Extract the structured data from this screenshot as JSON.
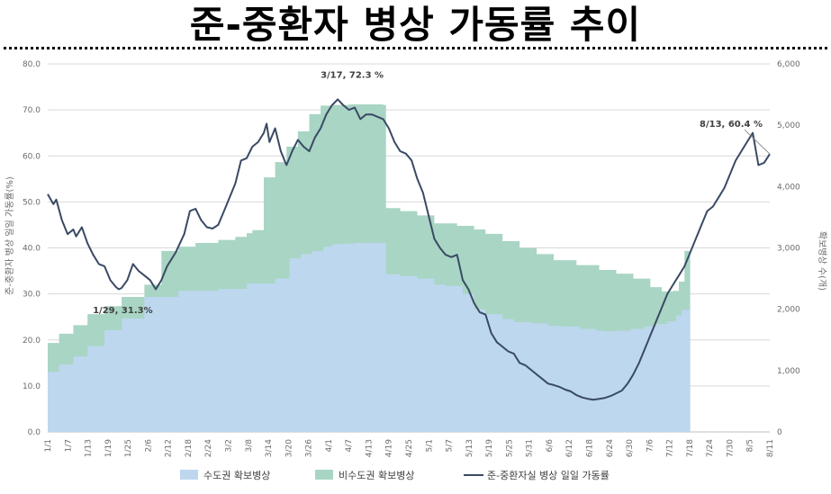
{
  "title": "준-중환자 병상 가동률 추이",
  "chart_data": {
    "type": "area+line",
    "title": "준-중환자 병상 가동률 추이",
    "y_left": {
      "label": "준-중환자 병상 일일 가동률(%)",
      "range": [
        0,
        80
      ],
      "ticks": [
        "0.0",
        "10.0",
        "20.0",
        "30.0",
        "40.0",
        "50.0",
        "60.0",
        "70.0",
        "80.0"
      ]
    },
    "y_right": {
      "label": "확보병상 수(개)",
      "range": [
        0,
        6000
      ],
      "ticks": [
        "0",
        "1,000",
        "2,000",
        "3,000",
        "4,000",
        "5,000",
        "6,000"
      ]
    },
    "x_ticks": [
      "1/1",
      "1/7",
      "1/13",
      "1/19",
      "1/25",
      "2/6",
      "2/12",
      "2/18",
      "2/24",
      "3/2",
      "3/8",
      "3/14",
      "3/20",
      "3/26",
      "4/1",
      "4/7",
      "4/13",
      "4/19",
      "4/25",
      "5/1",
      "5/7",
      "5/13",
      "5/19",
      "5/25",
      "5/31",
      "6/6",
      "6/12",
      "6/18",
      "6/24",
      "6/30",
      "7/6",
      "7/12",
      "7/18",
      "7/24",
      "7/30",
      "8/5",
      "8/11"
    ],
    "series": [
      {
        "name": "수도권 확보병상",
        "kind": "area",
        "axis": "right",
        "color": "#bdd7ee",
        "points": [
          [
            0,
            980
          ],
          [
            4,
            1100
          ],
          [
            9,
            1230
          ],
          [
            14,
            1400
          ],
          [
            20,
            1660
          ],
          [
            26,
            1850
          ],
          [
            34,
            2200
          ],
          [
            46,
            2300
          ],
          [
            60,
            2330
          ],
          [
            70,
            2420
          ],
          [
            80,
            2500
          ],
          [
            85,
            2830
          ],
          [
            89,
            2900
          ],
          [
            93,
            2950
          ],
          [
            97,
            3020
          ],
          [
            100,
            3060
          ],
          [
            104,
            3070
          ],
          [
            108,
            3080
          ],
          [
            113,
            3080
          ],
          [
            118,
            3080
          ],
          [
            119,
            2570
          ],
          [
            124,
            2540
          ],
          [
            130,
            2500
          ],
          [
            136,
            2400
          ],
          [
            140,
            2380
          ],
          [
            146,
            2250
          ],
          [
            150,
            2000
          ],
          [
            154,
            1920
          ],
          [
            160,
            1840
          ],
          [
            164,
            1790
          ],
          [
            170,
            1770
          ],
          [
            176,
            1730
          ],
          [
            181,
            1720
          ],
          [
            187,
            1680
          ],
          [
            193,
            1650
          ],
          [
            196,
            1640
          ],
          [
            200,
            1650
          ],
          [
            205,
            1680
          ],
          [
            210,
            1720
          ],
          [
            214,
            1760
          ],
          [
            218,
            1800
          ],
          [
            221,
            1900
          ],
          [
            223,
            1990
          ],
          [
            226,
            2050
          ]
        ]
      },
      {
        "name": "비수도권 확보병상",
        "kind": "area",
        "axis": "right",
        "color": "#a9d5c4",
        "points": [
          [
            0,
            1450
          ],
          [
            4,
            1600
          ],
          [
            9,
            1740
          ],
          [
            14,
            1920
          ],
          [
            20,
            2050
          ],
          [
            26,
            2200
          ],
          [
            34,
            2400
          ],
          [
            40,
            2950
          ],
          [
            46,
            3020
          ],
          [
            52,
            3080
          ],
          [
            60,
            3130
          ],
          [
            66,
            3180
          ],
          [
            70,
            3240
          ],
          [
            72,
            3290
          ],
          [
            76,
            4150
          ],
          [
            80,
            4400
          ],
          [
            84,
            4650
          ],
          [
            88,
            4900
          ],
          [
            92,
            5180
          ],
          [
            96,
            5320
          ],
          [
            100,
            5330
          ],
          [
            106,
            5340
          ],
          [
            113,
            5340
          ],
          [
            118,
            5330
          ],
          [
            119,
            3650
          ],
          [
            124,
            3600
          ],
          [
            130,
            3530
          ],
          [
            136,
            3400
          ],
          [
            144,
            3360
          ],
          [
            150,
            3300
          ],
          [
            154,
            3230
          ],
          [
            160,
            3110
          ],
          [
            166,
            3000
          ],
          [
            172,
            2900
          ],
          [
            178,
            2800
          ],
          [
            186,
            2720
          ],
          [
            194,
            2640
          ],
          [
            200,
            2580
          ],
          [
            206,
            2500
          ],
          [
            212,
            2360
          ],
          [
            216,
            2290
          ],
          [
            220,
            2300
          ],
          [
            222,
            2450
          ],
          [
            224,
            2950
          ],
          [
            226,
            3060
          ]
        ]
      },
      {
        "name": "준-중환자실 병상 일일 가동률",
        "kind": "line",
        "axis": "left",
        "color": "#3a4a64",
        "points": [
          [
            0,
            51.7
          ],
          [
            2,
            49.5
          ],
          [
            3,
            50.5
          ],
          [
            5,
            46
          ],
          [
            7,
            43
          ],
          [
            9,
            44
          ],
          [
            10,
            42.5
          ],
          [
            12,
            44.5
          ],
          [
            14,
            41
          ],
          [
            16,
            38.5
          ],
          [
            18,
            36.5
          ],
          [
            20,
            36
          ],
          [
            22,
            33
          ],
          [
            24,
            31.5
          ],
          [
            25,
            31
          ],
          [
            26,
            31.3
          ],
          [
            28,
            33
          ],
          [
            30,
            36.5
          ],
          [
            32,
            35
          ],
          [
            34,
            34
          ],
          [
            36,
            33
          ],
          [
            38,
            31
          ],
          [
            40,
            33
          ],
          [
            42,
            36
          ],
          [
            45,
            39
          ],
          [
            48,
            43
          ],
          [
            50,
            48
          ],
          [
            52,
            48.5
          ],
          [
            54,
            46
          ],
          [
            56,
            44.5
          ],
          [
            58,
            44.2
          ],
          [
            60,
            45
          ],
          [
            62,
            48
          ],
          [
            64,
            51
          ],
          [
            66,
            54
          ],
          [
            68,
            59
          ],
          [
            70,
            59.5
          ],
          [
            72,
            62
          ],
          [
            74,
            63
          ],
          [
            76,
            65
          ],
          [
            77,
            67
          ],
          [
            78,
            63
          ],
          [
            80,
            66
          ],
          [
            82,
            61
          ],
          [
            84,
            58
          ],
          [
            86,
            61
          ],
          [
            88,
            63.5
          ],
          [
            90,
            62
          ],
          [
            92,
            61
          ],
          [
            94,
            64
          ],
          [
            96,
            66
          ],
          [
            98,
            69
          ],
          [
            100,
            71
          ],
          [
            102,
            72.3
          ],
          [
            104,
            71
          ],
          [
            106,
            70
          ],
          [
            108,
            70.5
          ],
          [
            110,
            68
          ],
          [
            112,
            69
          ],
          [
            114,
            69
          ],
          [
            116,
            68.5
          ],
          [
            118,
            68
          ],
          [
            120,
            66
          ],
          [
            122,
            63
          ],
          [
            124,
            61
          ],
          [
            126,
            60.5
          ],
          [
            128,
            59
          ],
          [
            130,
            55
          ],
          [
            132,
            52
          ],
          [
            134,
            47
          ],
          [
            136,
            42
          ],
          [
            138,
            40
          ],
          [
            140,
            38.5
          ],
          [
            142,
            38
          ],
          [
            144,
            38.5
          ],
          [
            146,
            33
          ],
          [
            148,
            31
          ],
          [
            150,
            28
          ],
          [
            152,
            26
          ],
          [
            154,
            25.5
          ],
          [
            156,
            21.5
          ],
          [
            158,
            19.5
          ],
          [
            160,
            18.5
          ],
          [
            162,
            17.5
          ],
          [
            164,
            17
          ],
          [
            166,
            15
          ],
          [
            168,
            14.5
          ],
          [
            170,
            13.5
          ],
          [
            172,
            12.5
          ],
          [
            174,
            11.5
          ],
          [
            176,
            10.5
          ],
          [
            178,
            10.2
          ],
          [
            180,
            9.8
          ],
          [
            182,
            9.2
          ],
          [
            184,
            8.8
          ],
          [
            186,
            8
          ],
          [
            188,
            7.5
          ],
          [
            190,
            7.2
          ],
          [
            192,
            7
          ],
          [
            194,
            7.2
          ],
          [
            196,
            7.4
          ],
          [
            198,
            7.8
          ],
          [
            200,
            8.4
          ],
          [
            202,
            9
          ],
          [
            204,
            10.5
          ],
          [
            206,
            12.5
          ],
          [
            208,
            15
          ],
          [
            210,
            18
          ],
          [
            212,
            21
          ],
          [
            214,
            24
          ],
          [
            216,
            27
          ],
          [
            218,
            30
          ],
          [
            220,
            32
          ],
          [
            222,
            34
          ],
          [
            224,
            36
          ],
          [
            226,
            39
          ],
          [
            228,
            42
          ],
          [
            230,
            45
          ],
          [
            232,
            48
          ],
          [
            234,
            49
          ],
          [
            236,
            51
          ],
          [
            238,
            53
          ],
          [
            240,
            56
          ],
          [
            242,
            59
          ],
          [
            244,
            61
          ],
          [
            246,
            63
          ],
          [
            248,
            65
          ],
          [
            250,
            58
          ],
          [
            252,
            58.5
          ],
          [
            254,
            60.4
          ]
        ]
      }
    ],
    "annotations": [
      {
        "text": "1/29, 31.3%",
        "at": [
          26,
          31.3
        ]
      },
      {
        "text": "3/17, 72.3 %",
        "at": [
          102,
          72.3
        ]
      },
      {
        "text": "8/13, 60.4 %",
        "at": [
          254,
          60.4
        ]
      }
    ],
    "legend": {
      "position": "bottom",
      "items": [
        "수도권 확보병상",
        "비수도권 확보병상",
        "준-중환자실 병상 일일 가동률"
      ]
    }
  }
}
